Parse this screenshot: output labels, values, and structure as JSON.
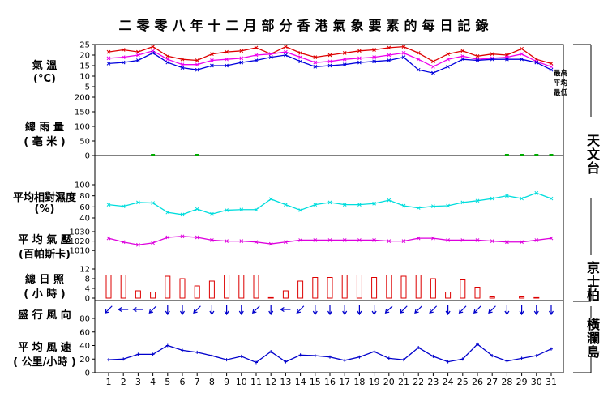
{
  "title": "二零零八年十二月部分香港氣象要素的每日記錄",
  "panels": {
    "temperature": {
      "label_line1": "氣 溫",
      "label_line2": "(°C)"
    },
    "rainfall": {
      "label_line1": "總 雨 量",
      "label_line2": "( 毫 米 )"
    },
    "humidity": {
      "label_line1": "平均相對濕度",
      "label_line2": "(%)"
    },
    "pressure": {
      "label_line1": "平 均 氣 壓",
      "label_line2": "(百帕斯卡)"
    },
    "sunshine": {
      "label_line1": "總 日 照",
      "label_line2": "( 小 時 )"
    },
    "wind_dir": {
      "label_line1": "盛 行 風 向"
    },
    "wind_speed": {
      "label_line1": "平 均 風 速",
      "label_line2": "( 公里/小時 )"
    }
  },
  "stations": {
    "observatory": "天文台",
    "kings_park": "京士柏",
    "waglan": "橫瀾島"
  },
  "colors": {
    "max_temp": "#dd0000",
    "mean_temp": "#ee00ee",
    "min_temp": "#0000dd",
    "humidity": "#00dddd",
    "pressure": "#dd00dd",
    "sunshine": "#dd0000",
    "rain": "#00aa00",
    "wind": "#0000cc"
  },
  "chart_data": [
    {
      "type": "line",
      "name": "temperature",
      "x": [
        1,
        2,
        3,
        4,
        5,
        6,
        7,
        8,
        9,
        10,
        11,
        12,
        13,
        14,
        15,
        16,
        17,
        18,
        19,
        20,
        21,
        22,
        23,
        24,
        25,
        26,
        27,
        28,
        29,
        30,
        31
      ],
      "yticks": [
        0,
        5,
        10,
        15,
        20,
        25
      ],
      "ylim": [
        0,
        25
      ],
      "series": [
        {
          "name": "最高",
          "values": [
            21.5,
            22.5,
            21.5,
            24,
            19.5,
            18,
            17.5,
            20.5,
            21.5,
            22,
            23.5,
            20.5,
            24,
            21,
            19,
            20,
            21,
            22,
            22.5,
            23.5,
            24,
            21,
            17,
            20.5,
            22,
            19.5,
            20.5,
            20,
            23,
            18,
            16
          ]
        },
        {
          "name": "平均",
          "values": [
            18.5,
            19,
            20,
            22,
            18,
            15.5,
            15.5,
            17.5,
            18,
            18.5,
            20,
            20.5,
            21.5,
            19,
            16.5,
            17,
            18,
            18.5,
            19,
            20,
            21,
            18,
            14.5,
            18,
            19.5,
            18,
            18.5,
            19,
            20.5,
            17,
            14.5
          ]
        },
        {
          "name": "最低",
          "values": [
            16,
            16.5,
            17.5,
            21,
            16.5,
            14,
            13,
            15,
            15,
            16.5,
            17.5,
            19,
            20,
            17,
            14.5,
            15,
            15.5,
            16.5,
            17,
            17.5,
            19,
            13,
            11.5,
            14.5,
            18,
            17.5,
            18,
            18,
            18,
            16.5,
            13
          ]
        }
      ]
    },
    {
      "type": "bar",
      "name": "rainfall",
      "x": [
        1,
        2,
        3,
        4,
        5,
        6,
        7,
        8,
        9,
        10,
        11,
        12,
        13,
        14,
        15,
        16,
        17,
        18,
        19,
        20,
        21,
        22,
        23,
        24,
        25,
        26,
        27,
        28,
        29,
        30,
        31
      ],
      "yticks": [
        0,
        50,
        100,
        150,
        200
      ],
      "ylim": [
        0,
        200
      ],
      "values": [
        0,
        0,
        0,
        0.5,
        0,
        0,
        0.5,
        0,
        0,
        0,
        0,
        0,
        0,
        0,
        0,
        0,
        0,
        0,
        0,
        0,
        0,
        0,
        0,
        0,
        0,
        0,
        0,
        0.5,
        2.5,
        3,
        0.5
      ]
    },
    {
      "type": "line",
      "name": "humidity",
      "x": [
        1,
        2,
        3,
        4,
        5,
        6,
        7,
        8,
        9,
        10,
        11,
        12,
        13,
        14,
        15,
        16,
        17,
        18,
        19,
        20,
        21,
        22,
        23,
        24,
        25,
        26,
        27,
        28,
        29,
        30,
        31
      ],
      "yticks": [
        40,
        60,
        80,
        100
      ],
      "ylim": [
        40,
        100
      ],
      "values": [
        64,
        61,
        68,
        67,
        50,
        46,
        56,
        47,
        54,
        55,
        55,
        74,
        64,
        54,
        64,
        68,
        64,
        64,
        66,
        72,
        62,
        58,
        61,
        62,
        68,
        71,
        75,
        80,
        75,
        85,
        75
      ]
    },
    {
      "type": "line",
      "name": "pressure",
      "x": [
        1,
        2,
        3,
        4,
        5,
        6,
        7,
        8,
        9,
        10,
        11,
        12,
        13,
        14,
        15,
        16,
        17,
        18,
        19,
        20,
        21,
        22,
        23,
        24,
        25,
        26,
        27,
        28,
        29,
        30,
        31
      ],
      "yticks": [
        1010,
        1020,
        1030
      ],
      "ylim": [
        1005,
        1030
      ],
      "values": [
        1023,
        1019,
        1016,
        1018,
        1024,
        1025,
        1024,
        1021,
        1020,
        1020,
        1019,
        1017,
        1019,
        1021,
        1021,
        1021,
        1021,
        1021,
        1021,
        1020,
        1020,
        1023,
        1023,
        1021,
        1021,
        1021,
        1020,
        1019,
        1019,
        1021,
        1023
      ]
    },
    {
      "type": "bar",
      "name": "sunshine",
      "x": [
        1,
        2,
        3,
        4,
        5,
        6,
        7,
        8,
        9,
        10,
        11,
        12,
        13,
        14,
        15,
        16,
        17,
        18,
        19,
        20,
        21,
        22,
        23,
        24,
        25,
        26,
        27,
        28,
        29,
        30,
        31
      ],
      "yticks": [
        0,
        4,
        8,
        12
      ],
      "ylim": [
        0,
        12
      ],
      "values": [
        9.5,
        9.5,
        3,
        2.5,
        9,
        8,
        5,
        7,
        9.5,
        9.5,
        9.5,
        0.2,
        3,
        7,
        8.5,
        8.5,
        9.5,
        9.5,
        8.5,
        9.5,
        9,
        9.5,
        8,
        2.5,
        7.5,
        4.5,
        0.5,
        0,
        0.5,
        0.2,
        0
      ]
    },
    {
      "type": "table",
      "name": "wind_direction",
      "x": [
        1,
        2,
        3,
        4,
        5,
        6,
        7,
        8,
        9,
        10,
        11,
        12,
        13,
        14,
        15,
        16,
        17,
        18,
        19,
        20,
        21,
        22,
        23,
        24,
        25,
        26,
        27,
        28,
        29,
        30,
        31
      ],
      "values": [
        "NE",
        "E",
        "E",
        "NE",
        "N",
        "N",
        "NE",
        "N",
        "N",
        "N",
        "NE",
        "N",
        "E",
        "NE",
        "N",
        "N",
        "N",
        "N",
        "N",
        "NE",
        "NE",
        "NE",
        "NE",
        "N",
        "NE",
        "NE",
        "NE",
        "N",
        "N",
        "N",
        "N"
      ]
    },
    {
      "type": "line",
      "name": "wind_speed",
      "x": [
        1,
        2,
        3,
        4,
        5,
        6,
        7,
        8,
        9,
        10,
        11,
        12,
        13,
        14,
        15,
        16,
        17,
        18,
        19,
        20,
        21,
        22,
        23,
        24,
        25,
        26,
        27,
        28,
        29,
        30,
        31
      ],
      "yticks": [
        0,
        20,
        40,
        60,
        80
      ],
      "ylim": [
        0,
        80
      ],
      "values": [
        19,
        20,
        27,
        27,
        40,
        33,
        30,
        25,
        19,
        24,
        15,
        31,
        16,
        26,
        25,
        23,
        18,
        23,
        31,
        21,
        19,
        37,
        24,
        16,
        20,
        42,
        25,
        17,
        21,
        25,
        35
      ]
    }
  ]
}
